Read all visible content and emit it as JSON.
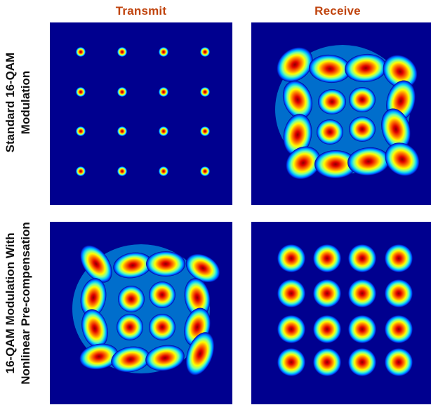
{
  "columns": {
    "transmit": "Transmit",
    "receive": "Receive"
  },
  "rows": {
    "standard_line1": "Standard 16-QAM",
    "standard_line2": "Modulation",
    "precomp_line1": "16-QAM Modulation With",
    "precomp_line2": "Nonlinear Pre-compensation"
  },
  "colors": {
    "column_title": "#c0440e",
    "background": "#00008f",
    "colormap": [
      "#00008f",
      "#0050ff",
      "#00c8ff",
      "#7cffa0",
      "#ffff00",
      "#ff8000",
      "#e00000",
      "#8b0000"
    ]
  },
  "panels": [
    {
      "id": "standard-transmit",
      "constellation": "16-QAM",
      "spread": "tight"
    },
    {
      "id": "standard-receive",
      "constellation": "16-QAM",
      "spread": "rotated-distorted"
    },
    {
      "id": "precomp-transmit",
      "constellation": "16-QAM",
      "spread": "pre-distorted"
    },
    {
      "id": "precomp-receive",
      "constellation": "16-QAM",
      "spread": "compensated"
    }
  ]
}
